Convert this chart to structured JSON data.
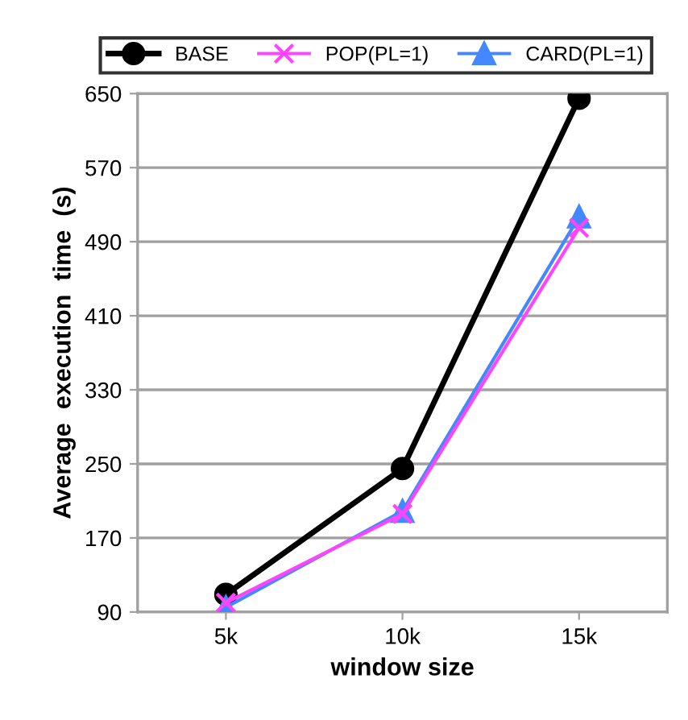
{
  "chart_data": {
    "type": "line",
    "xlabel": "window size",
    "ylabel": "Average  execution  time  (s)",
    "categories": [
      "5k",
      "10k",
      "15k"
    ],
    "series": [
      {
        "name": "BASE",
        "color": "#000000",
        "marker": "circle",
        "values": [
          109,
          245,
          645
        ]
      },
      {
        "name": "POP(PL=1)",
        "color": "#ff44ff",
        "marker": "cross",
        "values": [
          100,
          196,
          505
        ]
      },
      {
        "name": "CARD(PL=1)",
        "color": "#4488ff",
        "marker": "triangle",
        "values": [
          95,
          199,
          517
        ]
      }
    ],
    "ylim": [
      90,
      650
    ],
    "yticks": [
      90,
      170,
      250,
      330,
      410,
      490,
      570,
      650
    ],
    "grid": "y",
    "legend": "top",
    "line_style": "solid"
  }
}
